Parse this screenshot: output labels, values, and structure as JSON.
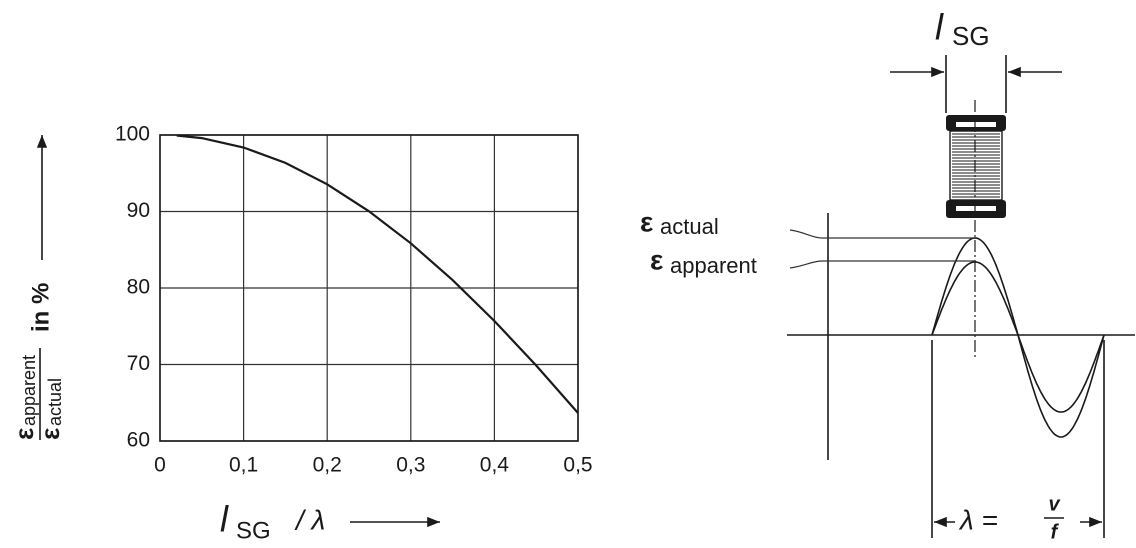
{
  "chart_data": {
    "type": "line",
    "x": [
      0.02,
      0.05,
      0.1,
      0.15,
      0.2,
      0.25,
      0.3,
      0.35,
      0.4,
      0.45,
      0.5
    ],
    "values": [
      99.93,
      99.59,
      98.36,
      96.35,
      93.55,
      90.03,
      85.84,
      81.03,
      75.68,
      69.87,
      63.66
    ],
    "color": "#1a1a1a",
    "xlim": [
      0,
      0.5
    ],
    "xticks": [
      0,
      {
        "value": 0.1,
        "label": "0,1"
      },
      {
        "value": 0.2,
        "label": "0,2"
      },
      {
        "value": 0.3,
        "label": "0,3"
      },
      {
        "value": 0.4,
        "label": "0,4"
      },
      {
        "value": 0.5,
        "label": "0,5"
      }
    ],
    "ylim": [
      60,
      100
    ],
    "yticks": [
      60,
      70,
      80,
      90,
      100
    ],
    "grid": true,
    "x_label": {
      "symbol": "l",
      "sub": "SG",
      "rest": "/ λ"
    },
    "y_label": {
      "num_symbol": "ε",
      "num_sub": "apparent",
      "den_symbol": "ε",
      "den_sub": "actual",
      "unit": "in %"
    }
  },
  "diagram": {
    "gauge_label": {
      "symbol": "l",
      "sub": "SG"
    },
    "actual_label": {
      "symbol": "ε",
      "sub": "actual"
    },
    "apparent_label": {
      "symbol": "ε",
      "sub": "apparent"
    },
    "wavelength": {
      "lhs": "λ =",
      "numerator": "v",
      "denominator": "f"
    }
  }
}
